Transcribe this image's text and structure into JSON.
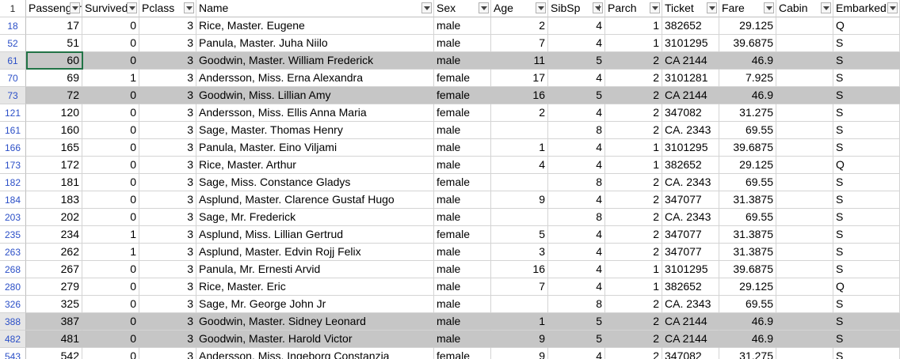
{
  "corner_label": "1",
  "columns": [
    {
      "key": "passengerid",
      "label": "PassengerId",
      "num": true,
      "filter_active": false
    },
    {
      "key": "survived",
      "label": "Survived",
      "num": true,
      "filter_active": false
    },
    {
      "key": "pclass",
      "label": "Pclass",
      "num": true,
      "filter_active": false
    },
    {
      "key": "name",
      "label": "Name",
      "num": false,
      "filter_active": false
    },
    {
      "key": "sex",
      "label": "Sex",
      "num": false,
      "filter_active": false
    },
    {
      "key": "age",
      "label": "Age",
      "num": true,
      "filter_active": false
    },
    {
      "key": "sibsp",
      "label": "SibSp",
      "num": true,
      "filter_active": true
    },
    {
      "key": "parch",
      "label": "Parch",
      "num": true,
      "filter_active": false
    },
    {
      "key": "ticket",
      "label": "Ticket",
      "num": false,
      "filter_active": false
    },
    {
      "key": "fare",
      "label": "Fare",
      "num": true,
      "filter_active": false
    },
    {
      "key": "cabin",
      "label": "Cabin",
      "num": false,
      "filter_active": false
    },
    {
      "key": "embarked",
      "label": "Embarked",
      "num": false,
      "filter_active": false
    }
  ],
  "rows": [
    {
      "row_number": "18",
      "selected": false,
      "cells": [
        "17",
        "0",
        "3",
        "Rice, Master. Eugene",
        "male",
        "2",
        "4",
        "1",
        "382652",
        "29.125",
        "",
        "Q"
      ]
    },
    {
      "row_number": "52",
      "selected": false,
      "cells": [
        "51",
        "0",
        "3",
        "Panula, Master. Juha Niilo",
        "male",
        "7",
        "4",
        "1",
        "3101295",
        "39.6875",
        "",
        "S"
      ]
    },
    {
      "row_number": "61",
      "selected": true,
      "cells": [
        "60",
        "0",
        "3",
        "Goodwin, Master. William Frederick",
        "male",
        "11",
        "5",
        "2",
        "CA 2144",
        "46.9",
        "",
        "S"
      ]
    },
    {
      "row_number": "70",
      "selected": false,
      "cells": [
        "69",
        "1",
        "3",
        "Andersson, Miss. Erna Alexandra",
        "female",
        "17",
        "4",
        "2",
        "3101281",
        "7.925",
        "",
        "S"
      ]
    },
    {
      "row_number": "73",
      "selected": true,
      "cells": [
        "72",
        "0",
        "3",
        "Goodwin, Miss. Lillian Amy",
        "female",
        "16",
        "5",
        "2",
        "CA 2144",
        "46.9",
        "",
        "S"
      ]
    },
    {
      "row_number": "121",
      "selected": false,
      "cells": [
        "120",
        "0",
        "3",
        "Andersson, Miss. Ellis Anna Maria",
        "female",
        "2",
        "4",
        "2",
        "347082",
        "31.275",
        "",
        "S"
      ]
    },
    {
      "row_number": "161",
      "selected": false,
      "cells": [
        "160",
        "0",
        "3",
        "Sage, Master. Thomas Henry",
        "male",
        "",
        "8",
        "2",
        "CA. 2343",
        "69.55",
        "",
        "S"
      ]
    },
    {
      "row_number": "166",
      "selected": false,
      "cells": [
        "165",
        "0",
        "3",
        "Panula, Master. Eino Viljami",
        "male",
        "1",
        "4",
        "1",
        "3101295",
        "39.6875",
        "",
        "S"
      ]
    },
    {
      "row_number": "173",
      "selected": false,
      "cells": [
        "172",
        "0",
        "3",
        "Rice, Master. Arthur",
        "male",
        "4",
        "4",
        "1",
        "382652",
        "29.125",
        "",
        "Q"
      ]
    },
    {
      "row_number": "182",
      "selected": false,
      "cells": [
        "181",
        "0",
        "3",
        "Sage, Miss. Constance Gladys",
        "female",
        "",
        "8",
        "2",
        "CA. 2343",
        "69.55",
        "",
        "S"
      ]
    },
    {
      "row_number": "184",
      "selected": false,
      "cells": [
        "183",
        "0",
        "3",
        "Asplund, Master. Clarence Gustaf Hugo",
        "male",
        "9",
        "4",
        "2",
        "347077",
        "31.3875",
        "",
        "S"
      ]
    },
    {
      "row_number": "203",
      "selected": false,
      "cells": [
        "202",
        "0",
        "3",
        "Sage, Mr. Frederick",
        "male",
        "",
        "8",
        "2",
        "CA. 2343",
        "69.55",
        "",
        "S"
      ]
    },
    {
      "row_number": "235",
      "selected": false,
      "cells": [
        "234",
        "1",
        "3",
        "Asplund, Miss. Lillian Gertrud",
        "female",
        "5",
        "4",
        "2",
        "347077",
        "31.3875",
        "",
        "S"
      ]
    },
    {
      "row_number": "263",
      "selected": false,
      "cells": [
        "262",
        "1",
        "3",
        "Asplund, Master. Edvin Rojj Felix",
        "male",
        "3",
        "4",
        "2",
        "347077",
        "31.3875",
        "",
        "S"
      ]
    },
    {
      "row_number": "268",
      "selected": false,
      "cells": [
        "267",
        "0",
        "3",
        "Panula, Mr. Ernesti Arvid",
        "male",
        "16",
        "4",
        "1",
        "3101295",
        "39.6875",
        "",
        "S"
      ]
    },
    {
      "row_number": "280",
      "selected": false,
      "cells": [
        "279",
        "0",
        "3",
        "Rice, Master. Eric",
        "male",
        "7",
        "4",
        "1",
        "382652",
        "29.125",
        "",
        "Q"
      ]
    },
    {
      "row_number": "326",
      "selected": false,
      "cells": [
        "325",
        "0",
        "3",
        "Sage, Mr. George John Jr",
        "male",
        "",
        "8",
        "2",
        "CA. 2343",
        "69.55",
        "",
        "S"
      ]
    },
    {
      "row_number": "388",
      "selected": true,
      "cells": [
        "387",
        "0",
        "3",
        "Goodwin, Master. Sidney Leonard",
        "male",
        "1",
        "5",
        "2",
        "CA 2144",
        "46.9",
        "",
        "S"
      ]
    },
    {
      "row_number": "482",
      "selected": true,
      "cells": [
        "481",
        "0",
        "3",
        "Goodwin, Master. Harold Victor",
        "male",
        "9",
        "5",
        "2",
        "CA 2144",
        "46.9",
        "",
        "S"
      ]
    },
    {
      "row_number": "543",
      "selected": false,
      "cells": [
        "542",
        "0",
        "3",
        "Andersson, Miss. Ingeborg Constanzia",
        "female",
        "9",
        "4",
        "2",
        "347082",
        "31.275",
        "",
        "S"
      ]
    }
  ]
}
